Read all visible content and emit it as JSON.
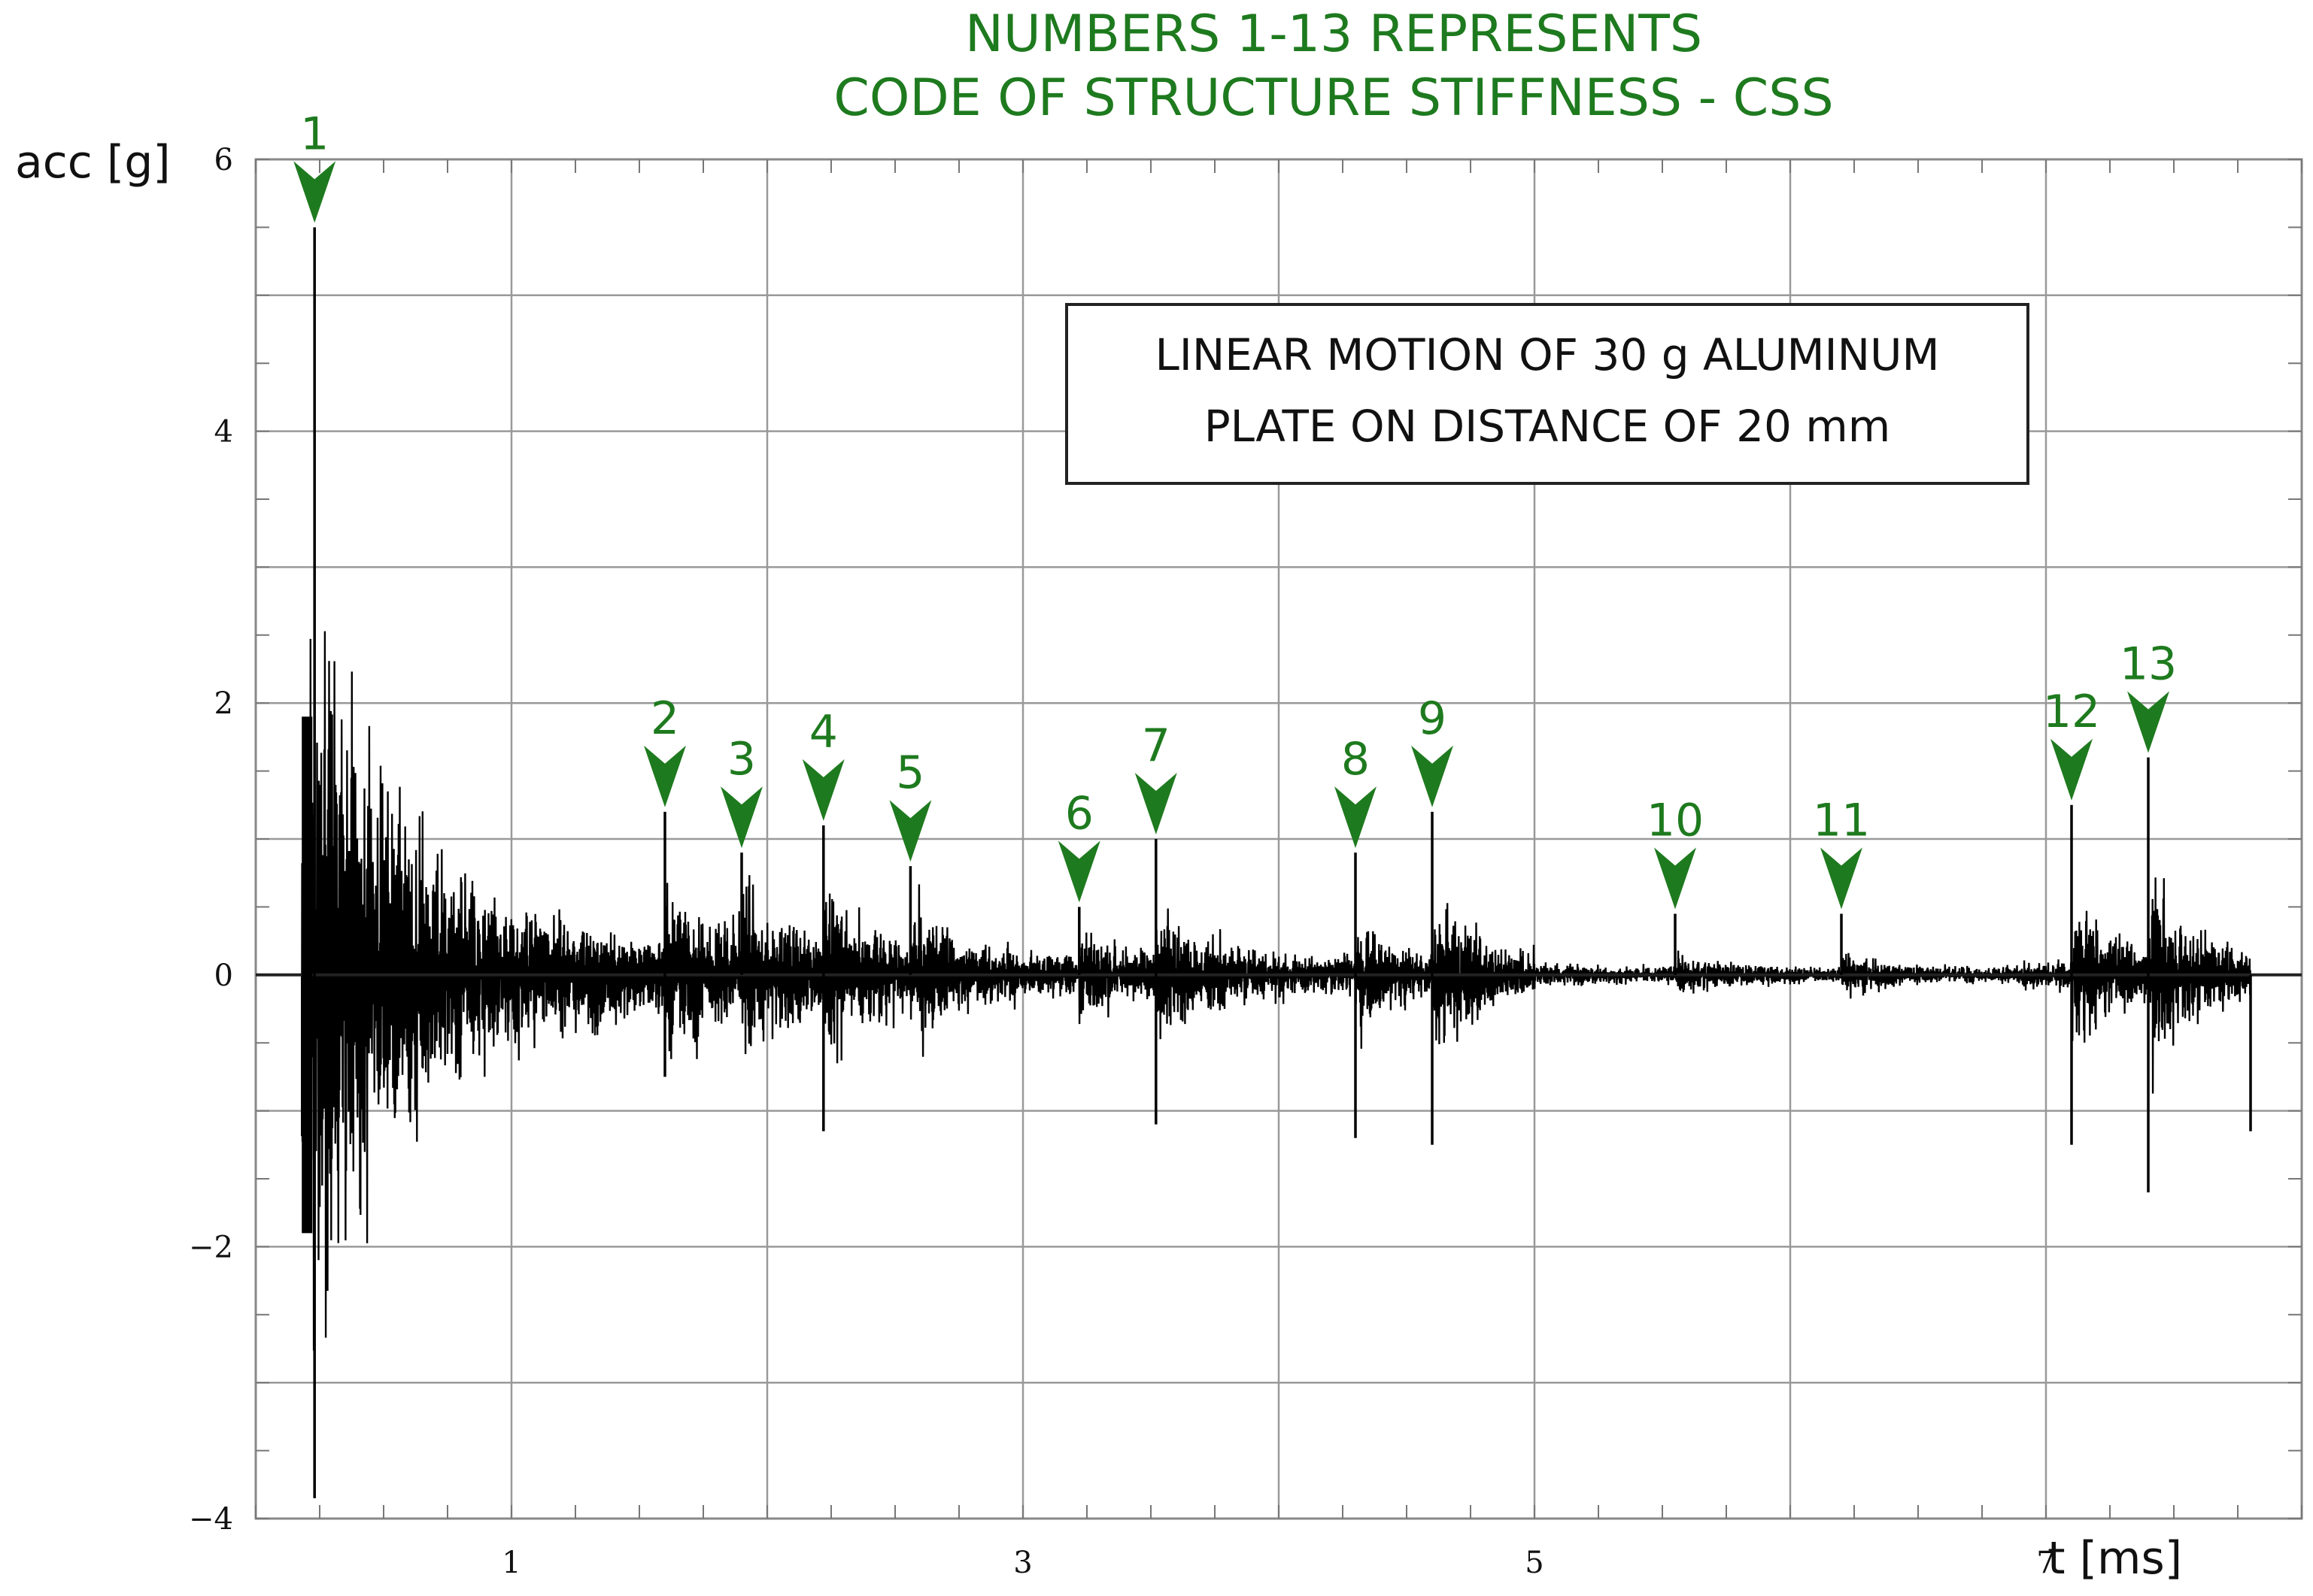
{
  "chart_data": {
    "type": "line",
    "title_lines": [
      "NUMBERS 1-13 REPRESENTS",
      "CODE OF STRUCTURE STIFFNESS - CSS"
    ],
    "ylabel": "acc [g]",
    "xlabel": "t [ms]",
    "xlim": [
      0,
      8
    ],
    "ylim": [
      -4,
      6
    ],
    "x_ticks": [
      1,
      3,
      5,
      7
    ],
    "y_ticks": [
      -4,
      -2,
      0,
      2,
      4,
      6
    ],
    "y_tick_labels": [
      "−4",
      "−2",
      "0",
      "2",
      "4",
      "6"
    ],
    "grid": true,
    "annotation": [
      "LINEAR MOTION OF 30 g ALUMINUM",
      "PLATE ON DISTANCE OF 20 mm"
    ],
    "signal_start": 0.18,
    "signal_end": 7.8,
    "markers": [
      {
        "label": "1",
        "x": 0.23,
        "peak": 5.5
      },
      {
        "label": "2",
        "x": 1.6,
        "peak": 1.2
      },
      {
        "label": "3",
        "x": 1.9,
        "peak": 0.9
      },
      {
        "label": "4",
        "x": 2.22,
        "peak": 1.1
      },
      {
        "label": "5",
        "x": 2.56,
        "peak": 0.8
      },
      {
        "label": "6",
        "x": 3.22,
        "peak": 0.5
      },
      {
        "label": "7",
        "x": 3.52,
        "peak": 1.0
      },
      {
        "label": "8",
        "x": 4.3,
        "peak": 0.9
      },
      {
        "label": "9",
        "x": 4.6,
        "peak": 1.2
      },
      {
        "label": "10",
        "x": 5.55,
        "peak": 0.45
      },
      {
        "label": "11",
        "x": 6.2,
        "peak": 0.45
      },
      {
        "label": "12",
        "x": 7.1,
        "peak": 1.25
      },
      {
        "label": "13",
        "x": 7.4,
        "peak": 1.6
      }
    ],
    "negative_extremes": [
      {
        "x": 0.23,
        "y": -3.85
      },
      {
        "x": 1.6,
        "y": -0.75
      },
      {
        "x": 2.22,
        "y": -1.15
      },
      {
        "x": 3.52,
        "y": -1.1
      },
      {
        "x": 4.3,
        "y": -1.2
      },
      {
        "x": 4.6,
        "y": -1.25
      },
      {
        "x": 7.1,
        "y": -1.25
      },
      {
        "x": 7.4,
        "y": -1.6
      },
      {
        "x": 7.8,
        "y": -1.15
      }
    ],
    "colors": {
      "signal": "#000000",
      "marker": "#1e7a1e",
      "grid": "#999999",
      "title": "#1e7a1e"
    }
  }
}
